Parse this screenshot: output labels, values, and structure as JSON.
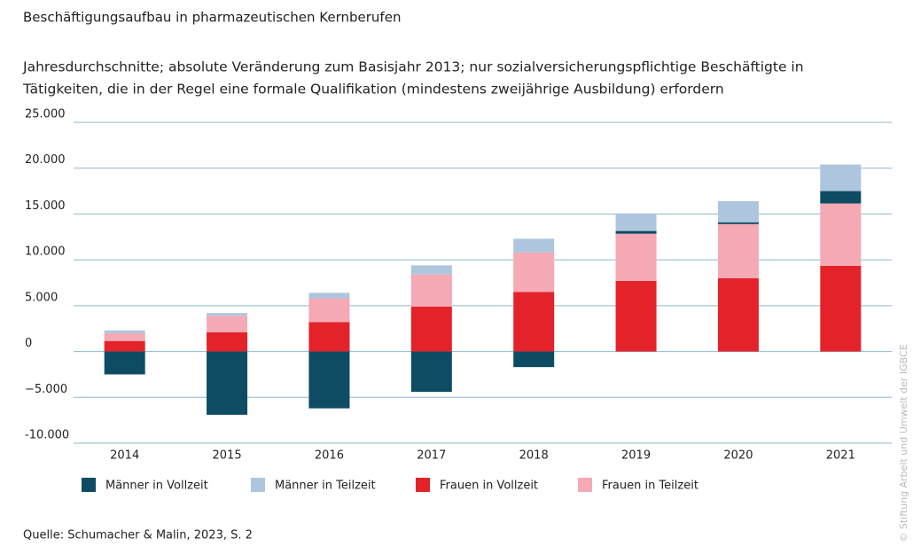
{
  "chart_data": {
    "type": "stacked_bar",
    "title": "Beschäftigungsaufbau in pharmazeutischen Kernberufen",
    "subtitle": [
      "Jahresdurchschnitte; absolute Veränderung zum Basisjahr 2013; nur sozialversicherungspflichtige Beschäftigte in",
      "Tätigkeiten, die in der Regel eine formale Qualifikation (mindestens zweijährige Ausbildung) erfordern"
    ],
    "categories": [
      "2014",
      "2015",
      "2016",
      "2017",
      "2018",
      "2019",
      "2020",
      "2021"
    ],
    "series": [
      {
        "name": "Männer in Vollzeit",
        "color": "#0d4c63",
        "values": [
          -2500,
          -6900,
          -6200,
          -4400,
          -1700,
          300,
          200,
          1350
        ]
      },
      {
        "name": "Männer in Teilzeit",
        "color": "#adc6de",
        "values": [
          300,
          300,
          600,
          1000,
          1500,
          1900,
          2300,
          2900
        ]
      },
      {
        "name": "Frauen in Vollzeit",
        "color": "#e3222a",
        "values": [
          1150,
          2100,
          3200,
          4900,
          6500,
          7700,
          8000,
          9350
        ]
      },
      {
        "name": "Frauen in Teilzeit",
        "color": "#f4a9b5",
        "values": [
          850,
          1800,
          2600,
          3500,
          4300,
          5150,
          5900,
          6800
        ]
      }
    ],
    "ylim": [
      -10000,
      25000
    ],
    "yticks": [
      {
        "value": -10000,
        "label": "-10.000"
      },
      {
        "value": -5000,
        "label": "−5.000"
      },
      0,
      {
        "value": 5000,
        "label": "5.000"
      },
      {
        "value": 10000,
        "label": "10.000"
      },
      {
        "value": 15000,
        "label": "15.000"
      },
      {
        "value": 20000,
        "label": "20.000"
      },
      {
        "value": 25000,
        "label": "25.000"
      }
    ],
    "grid": true,
    "source": "Quelle: Schumacher & Malin, 2023, S. 2",
    "credit": "© Stiftung Arbeit und Umwelt der IGBCE"
  }
}
